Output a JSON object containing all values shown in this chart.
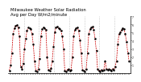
{
  "title": "Milwaukee Weather Solar Radiation\nAvg per Day W/m2/minute",
  "title_fontsize": 3.8,
  "background_color": "#ffffff",
  "line_color": "#cc0000",
  "marker_color": "#000000",
  "grid_color": "#999999",
  "ylim": [
    0,
    7
  ],
  "yticks": [
    1,
    2,
    3,
    4,
    5,
    6,
    7
  ],
  "values": [
    0.3,
    1.0,
    2.5,
    4.8,
    5.5,
    5.8,
    5.9,
    5.6,
    4.5,
    0.8,
    0.5,
    1.2,
    3.0,
    4.2,
    5.2,
    5.6,
    5.5,
    5.4,
    4.8,
    3.5,
    1.5,
    0.3,
    0.2,
    0.5,
    1.8,
    4.5,
    5.4,
    5.6,
    5.5,
    5.3,
    2.0,
    0.4,
    0.3,
    0.6,
    1.5,
    3.2,
    5.0,
    5.6,
    5.7,
    5.5,
    5.4,
    5.2,
    4.5,
    3.0,
    0.3,
    0.2,
    0.4,
    0.5,
    0.3,
    0.4,
    2.0,
    4.5,
    5.3,
    5.5,
    5.6,
    5.2,
    4.0,
    2.5,
    0.4,
    0.3,
    0.2,
    0.5,
    2.5,
    4.8,
    5.4,
    5.6,
    5.7,
    5.3,
    4.2,
    2.8,
    0.5,
    0.3,
    0.2,
    0.4,
    0.3,
    0.4,
    1.5,
    0.5,
    0.4,
    0.5,
    0.4,
    0.3,
    0.5,
    0.4,
    0.8,
    1.5,
    3.5,
    4.8,
    5.0,
    5.3,
    5.5,
    5.4,
    4.8,
    3.8,
    2.5,
    1.5
  ],
  "vgrid_positions": [
    11.5,
    23.5,
    35.5,
    47.5,
    59.5,
    71.5,
    83.5
  ],
  "n": 96
}
